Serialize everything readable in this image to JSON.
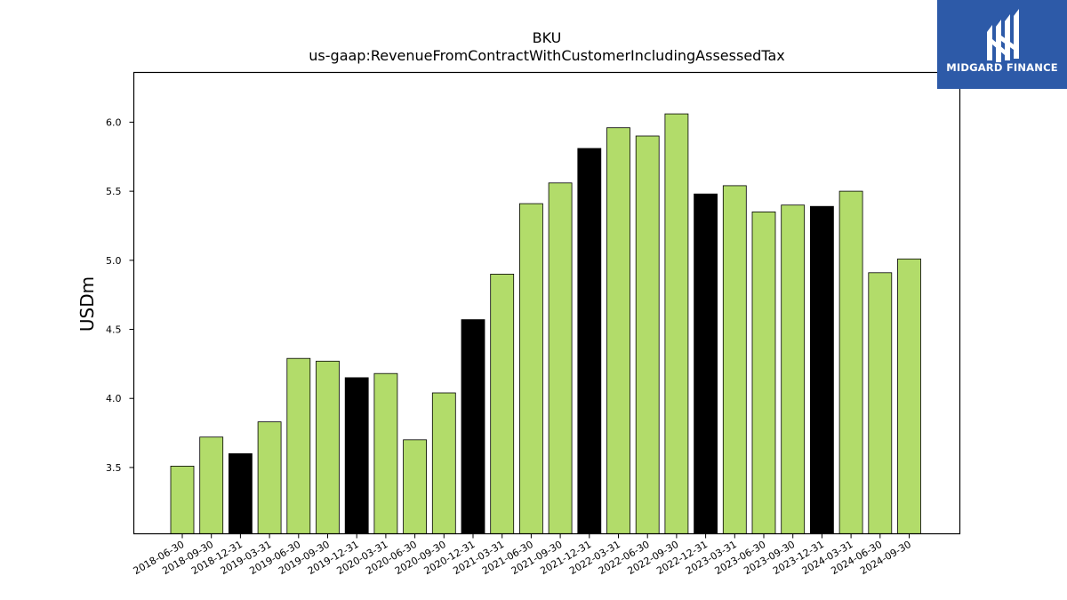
{
  "chart_data": {
    "type": "bar",
    "title": "BKU",
    "subtitle": "us-gaap:RevenueFromContractWithCustomerIncludingAssessedTax",
    "xlabel": "",
    "ylabel": "USDm",
    "ylim": [
      3.02,
      6.36
    ],
    "yticks": [
      "3.5",
      "4.0",
      "4.5",
      "5.0",
      "5.5",
      "6.0"
    ],
    "grid": false,
    "categories": [
      "2018-06-30",
      "2018-09-30",
      "2018-12-31",
      "2019-03-31",
      "2019-06-30",
      "2019-09-30",
      "2019-12-31",
      "2020-03-31",
      "2020-06-30",
      "2020-09-30",
      "2020-12-31",
      "2021-03-31",
      "2021-06-30",
      "2021-09-30",
      "2021-12-31",
      "2022-03-31",
      "2022-06-30",
      "2022-09-30",
      "2022-12-31",
      "2023-03-31",
      "2023-06-30",
      "2023-09-30",
      "2023-12-31",
      "2024-03-31",
      "2024-06-30",
      "2024-09-30"
    ],
    "values": [
      3.51,
      3.72,
      3.6,
      3.83,
      4.29,
      4.27,
      4.15,
      4.18,
      3.7,
      4.04,
      4.57,
      4.9,
      5.41,
      5.56,
      5.81,
      5.96,
      5.9,
      6.06,
      5.48,
      5.54,
      5.35,
      5.4,
      5.39,
      5.5,
      4.91,
      5.01
    ],
    "colors": {
      "default": "#b2dc6a",
      "highlight": "#000000",
      "edge": "#000000"
    },
    "highlight_categories": [
      "2018-12-31",
      "2019-12-31",
      "2020-12-31",
      "2021-12-31",
      "2022-12-31",
      "2023-12-31"
    ]
  },
  "logo": {
    "text": "MIDGARD FINANCE",
    "background": "#2d5aa8",
    "icon": "midgard-m-icon"
  }
}
